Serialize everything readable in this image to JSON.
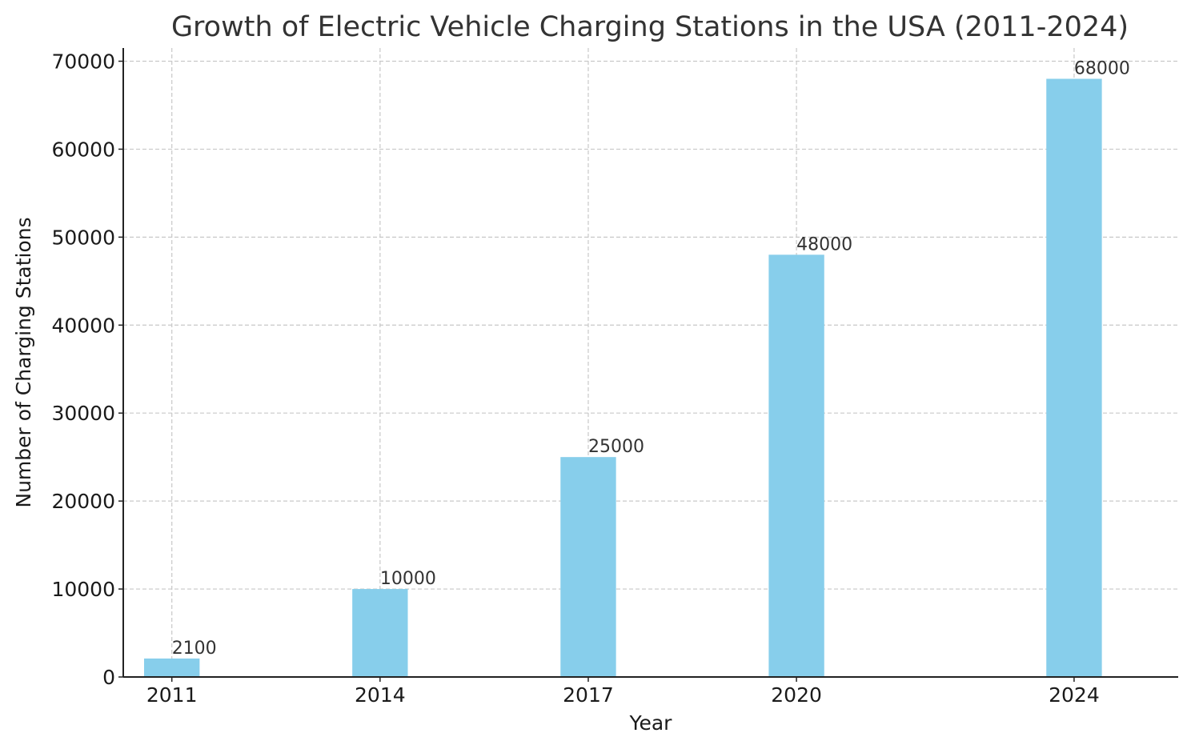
{
  "chart_data": {
    "type": "bar",
    "title": "Growth of Electric Vehicle Charging Stations in the USA (2011-2024)",
    "xlabel": "Year",
    "ylabel": "Number of Charging Stations",
    "x": [
      2011,
      2014,
      2017,
      2020,
      2024
    ],
    "categories": [
      "2011",
      "2014",
      "2017",
      "2020",
      "2024"
    ],
    "values": [
      2100,
      10000,
      25000,
      48000,
      68000
    ],
    "data_labels": [
      "2100",
      "10000",
      "25000",
      "48000",
      "68000"
    ],
    "xlim": [
      2010.3,
      2025.5
    ],
    "ylim": [
      0,
      71500
    ],
    "yticks": [
      0,
      10000,
      20000,
      30000,
      40000,
      50000,
      60000,
      70000
    ],
    "ytick_labels": [
      "0",
      "10000",
      "20000",
      "30000",
      "40000",
      "50000",
      "60000",
      "70000"
    ],
    "bar_color": "#87ceeb",
    "grid": true,
    "legend": "none"
  }
}
